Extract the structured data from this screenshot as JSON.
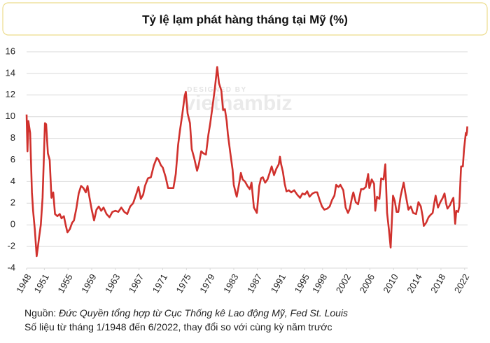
{
  "chart_data": {
    "type": "line",
    "title": "Tỷ lệ lạm phát hàng tháng tại Mỹ (%)",
    "watermark": [
      "DESIGNED BY",
      "vietnambiz"
    ],
    "source_label": "Nguồn:",
    "source_text": "Đức Quyền tổng hợp từ Cục Thống kê Lao động Mỹ, Fed St. Louis",
    "note": "Số liệu từ tháng 1/1948 đến 6/2022, thay đổi so với cùng kỳ năm trước",
    "color": "#d0312d",
    "grid": true,
    "xlim": [
      1948,
      2022.5
    ],
    "ylim": [
      -4,
      16
    ],
    "yticks": [
      -4,
      -2,
      0,
      2,
      4,
      6,
      8,
      10,
      12,
      14,
      16
    ],
    "xticks": [
      1948,
      1951,
      1955,
      1959,
      1963,
      1967,
      1971,
      1975,
      1979,
      1983,
      1987,
      1991,
      1995,
      1998,
      2002,
      2006,
      2010,
      2014,
      2018,
      2022
    ],
    "x": [
      1948.0,
      1948.15,
      1948.3,
      1948.6,
      1948.9,
      1949.1,
      1949.4,
      1949.7,
      1949.9,
      1950.1,
      1950.4,
      1950.7,
      1950.9,
      1951.1,
      1951.3,
      1951.6,
      1951.9,
      1952.2,
      1952.5,
      1952.8,
      1953.2,
      1953.6,
      1953.9,
      1954.3,
      1954.6,
      1954.9,
      1955.3,
      1955.7,
      1956.0,
      1956.4,
      1956.8,
      1957.2,
      1957.6,
      1958.0,
      1958.3,
      1958.6,
      1959.0,
      1959.4,
      1959.8,
      1960.2,
      1960.6,
      1961.0,
      1961.5,
      1962.0,
      1962.5,
      1963.0,
      1963.5,
      1964.0,
      1964.5,
      1965.0,
      1965.5,
      1966.0,
      1966.5,
      1966.9,
      1967.3,
      1967.7,
      1968.0,
      1968.5,
      1969.0,
      1969.5,
      1970.0,
      1970.3,
      1970.7,
      1971.0,
      1971.5,
      1971.9,
      1972.3,
      1972.8,
      1973.2,
      1973.6,
      1973.9,
      1974.3,
      1974.7,
      1974.9,
      1975.2,
      1975.6,
      1975.9,
      1976.3,
      1976.8,
      1977.1,
      1977.5,
      1977.9,
      1978.3,
      1978.7,
      1979.0,
      1979.4,
      1979.8,
      1980.2,
      1980.5,
      1980.9,
      1981.2,
      1981.5,
      1981.8,
      1982.0,
      1982.4,
      1982.8,
      1983.0,
      1983.3,
      1983.5,
      1983.9,
      1984.2,
      1984.5,
      1984.9,
      1985.3,
      1985.7,
      1986.0,
      1986.4,
      1986.7,
      1986.9,
      1987.3,
      1987.6,
      1987.9,
      1988.3,
      1988.7,
      1989.0,
      1989.4,
      1989.8,
      1990.2,
      1990.6,
      1990.8,
      1991.0,
      1991.3,
      1991.6,
      1991.9,
      1992.3,
      1992.7,
      1993.2,
      1993.7,
      1994.2,
      1994.6,
      1995.0,
      1995.4,
      1995.8,
      1996.3,
      1996.7,
      1997.1,
      1997.5,
      1997.9,
      1998.3,
      1998.8,
      1999.2,
      1999.6,
      2000.0,
      2000.3,
      2000.7,
      2001.0,
      2001.5,
      2001.9,
      2002.3,
      2002.6,
      2003.0,
      2003.2,
      2003.6,
      2004.0,
      2004.5,
      2004.9,
      2005.3,
      2005.7,
      2005.9,
      2006.3,
      2006.7,
      2006.9,
      2007.2,
      2007.6,
      2007.9,
      2008.3,
      2008.6,
      2008.9,
      2009.2,
      2009.5,
      2009.9,
      2010.2,
      2010.5,
      2010.8,
      2011.2,
      2011.7,
      2012.0,
      2012.5,
      2012.9,
      2013.3,
      2013.8,
      2014.2,
      2014.6,
      2014.9,
      2015.1,
      2015.5,
      2015.9,
      2016.2,
      2016.6,
      2016.9,
      2017.1,
      2017.5,
      2017.9,
      2018.3,
      2018.6,
      2018.9,
      2019.1,
      2019.5,
      2019.9,
      2020.1,
      2020.4,
      2020.6,
      2020.9,
      2021.1,
      2021.3,
      2021.4,
      2021.7,
      2021.9,
      2022.0,
      2022.2,
      2022.3,
      2022.4,
      2022.45
    ],
    "values": [
      10.2,
      6.8,
      9.6,
      8.5,
      3.0,
      1.3,
      -0.5,
      -2.9,
      -2.1,
      -1.2,
      0.0,
      2.5,
      5.9,
      9.4,
      9.3,
      6.6,
      6.0,
      2.5,
      3.0,
      1.0,
      0.8,
      1.0,
      0.6,
      0.8,
      0.0,
      -0.7,
      -0.4,
      0.2,
      0.4,
      1.5,
      2.9,
      3.6,
      3.4,
      3.0,
      3.6,
      2.6,
      1.4,
      0.4,
      1.4,
      1.7,
      1.3,
      1.6,
      1.0,
      0.7,
      1.2,
      1.3,
      1.2,
      1.6,
      1.2,
      1.0,
      1.7,
      2.0,
      2.8,
      3.5,
      2.4,
      2.8,
      3.6,
      4.3,
      4.4,
      5.5,
      6.2,
      6.0,
      5.5,
      5.3,
      4.4,
      3.4,
      3.4,
      3.4,
      4.7,
      7.4,
      8.7,
      10.2,
      11.9,
      12.3,
      10.3,
      9.4,
      7.0,
      6.2,
      5.0,
      5.6,
      6.8,
      6.6,
      6.5,
      8.3,
      9.3,
      10.9,
      12.6,
      14.6,
      13.1,
      12.4,
      10.6,
      10.7,
      9.6,
      8.4,
      6.7,
      5.1,
      3.7,
      3.0,
      2.6,
      3.8,
      4.8,
      4.2,
      4.0,
      3.6,
      3.3,
      3.9,
      1.6,
      1.3,
      1.1,
      3.6,
      4.3,
      4.4,
      3.9,
      4.2,
      4.7,
      5.4,
      4.6,
      5.2,
      5.6,
      6.3,
      5.6,
      4.9,
      3.8,
      3.1,
      3.2,
      3.0,
      3.2,
      2.8,
      2.5,
      2.9,
      2.8,
      3.1,
      2.6,
      2.9,
      3.0,
      3.0,
      2.3,
      1.7,
      1.4,
      1.5,
      1.7,
      2.3,
      2.7,
      3.7,
      3.5,
      3.7,
      3.2,
      1.6,
      1.1,
      1.5,
      2.6,
      3.0,
      2.1,
      1.9,
      3.3,
      3.3,
      3.5,
      4.7,
      3.4,
      4.2,
      3.8,
      1.3,
      2.6,
      2.4,
      4.3,
      4.2,
      5.6,
      1.1,
      -0.4,
      -2.1,
      2.7,
      2.2,
      1.2,
      1.2,
      2.7,
      3.9,
      2.9,
      1.4,
      1.7,
      1.1,
      1.0,
      2.1,
      1.7,
      0.8,
      -0.1,
      0.2,
      0.7,
      0.9,
      1.1,
      2.1,
      2.7,
      1.6,
      2.1,
      2.5,
      2.9,
      1.9,
      1.5,
      1.8,
      2.3,
      2.5,
      0.1,
      1.3,
      1.2,
      1.7,
      4.2,
      5.4,
      5.4,
      7.0,
      7.5,
      8.5,
      8.3,
      8.6,
      9.1
    ]
  }
}
